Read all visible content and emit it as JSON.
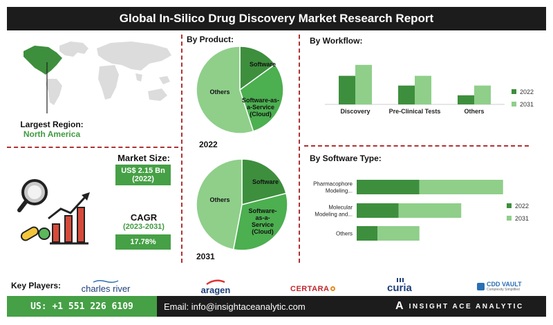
{
  "header": {
    "title": "Global In-Silico Drug Discovery Market Research Report"
  },
  "region": {
    "label": "Largest Region:",
    "value": "North America"
  },
  "market_size": {
    "label": "Market Size:",
    "value": "US$ 2.15 Bn",
    "year": "(2022)"
  },
  "cagr": {
    "label": "CAGR",
    "period": "(2023-2031)",
    "value": "17.78%"
  },
  "sections": {
    "product": "By  Product:",
    "workflow": "By Workflow:",
    "software_type": "By Software Type:"
  },
  "key_players": {
    "label": "Key Players:",
    "names": [
      "charles river",
      "aragen",
      "CERTARA",
      "curia",
      "CDD VAULT"
    ],
    "cdd_tagline": "Complexity Simplified"
  },
  "footer": {
    "phone": "US: +1 551 226 6109",
    "email": "Email: info@insightaceanalytic.com",
    "brand": "INSIGHT ACE ANALYTIC",
    "brand_mark": "A"
  },
  "colors": {
    "dark_green": "#3d8f3d",
    "mid_green": "#4caf50",
    "light_green": "#8fcf8a",
    "header": "#1c1c1c",
    "divider": "#b03030"
  },
  "icons": [
    "world-map-icon",
    "magnifier-icon",
    "growth-chart-icon",
    "capsule-icon"
  ],
  "chart_data": [
    {
      "type": "pie",
      "title": "2022",
      "labels": [
        "Software",
        "Software-as-a-Service (Cloud)",
        "Others"
      ],
      "values": [
        15,
        30,
        55
      ]
    },
    {
      "type": "pie",
      "title": "2031",
      "labels": [
        "Software",
        "Software-as-a-Service (Cloud)",
        "Others"
      ],
      "values": [
        21,
        32,
        47
      ]
    },
    {
      "type": "bar",
      "orientation": "vertical",
      "categories": [
        "Discovery",
        "Pre-Clinical Tests",
        "Others"
      ],
      "series": [
        {
          "name": "2022",
          "values": [
            47,
            31,
            15
          ]
        },
        {
          "name": "2031",
          "values": [
            65,
            47,
            31
          ]
        }
      ],
      "ylim": [
        0,
        75
      ],
      "legend": "right"
    },
    {
      "type": "bar",
      "orientation": "horizontal",
      "stacked": true,
      "categories": [
        "Pharmacophore Modeling...",
        "Molecular Modeling and...",
        "Others"
      ],
      "series": [
        {
          "name": "2022",
          "values": [
            30,
            20,
            10
          ]
        },
        {
          "name": "2031",
          "values": [
            40,
            30,
            20
          ]
        }
      ],
      "xlim": [
        0,
        80
      ],
      "legend": "right"
    }
  ]
}
